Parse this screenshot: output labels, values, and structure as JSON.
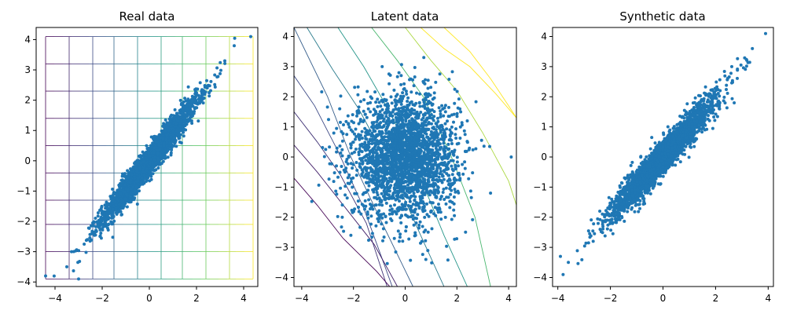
{
  "figure": {
    "point_color": "#1f77b4",
    "axis_color": "#000000",
    "background": "#ffffff",
    "line_colormap": "viridis"
  },
  "chart_data": [
    {
      "type": "scatter",
      "title": "Real data",
      "xlim": [
        -4.8,
        4.6
      ],
      "ylim": [
        -4.15,
        4.4
      ],
      "xticks": [
        -4,
        -2,
        0,
        2,
        4
      ],
      "yticks": [
        -4,
        -3,
        -2,
        -1,
        0,
        1,
        2,
        3,
        4
      ],
      "grid": "warped-grid",
      "series": [
        {
          "distribution": "bivariate-normal",
          "n_points": 2600,
          "mean": [
            0,
            0
          ],
          "std_x": 1.0,
          "std_y": 1.0,
          "correlation": 0.97,
          "outliers": [
            [
              4.3,
              4.1
            ],
            [
              3.6,
              3.8
            ],
            [
              3.2,
              3.3
            ],
            [
              -4.4,
              -3.8
            ],
            [
              -3.0,
              -3.9
            ],
            [
              -3.5,
              -3.5
            ],
            [
              -3.3,
              -3.0
            ]
          ]
        }
      ],
      "grid_lines": {
        "vertical_x": [
          -4.4,
          -3.4,
          -2.4,
          -1.5,
          -0.5,
          0.5,
          1.4,
          2.4,
          3.4
        ],
        "horizontal_y": [
          4.1,
          3.2,
          2.3,
          1.4,
          0.5,
          -0.4,
          -1.3,
          -2.1,
          -3.0,
          -3.9
        ],
        "x_range": [
          -4.4,
          4.4
        ],
        "y_range": [
          -3.9,
          4.1
        ]
      }
    },
    {
      "type": "scatter",
      "title": "Latent data",
      "xlim": [
        -4.3,
        4.3
      ],
      "ylim": [
        -4.3,
        4.3
      ],
      "xticks": [
        -4,
        -2,
        0,
        2,
        4
      ],
      "yticks": [
        -4,
        -3,
        -2,
        -1,
        0,
        1,
        2,
        3,
        4
      ],
      "grid": "warped-grid",
      "series": [
        {
          "distribution": "bivariate-normal",
          "n_points": 2600,
          "mean": [
            0,
            0
          ],
          "std_x": 1.0,
          "std_y": 1.0,
          "correlation": 0.0,
          "outliers": [
            [
              4.1,
              0.0
            ],
            [
              2.4,
              1.2
            ],
            [
              3.3,
              -1.2
            ],
            [
              -2.1,
              -2.6
            ],
            [
              0.8,
              -3.4
            ]
          ]
        }
      ],
      "grid_lines": {
        "curves": [
          [
            [
              -4.3,
              4.3
            ],
            [
              -3.0,
              2.0
            ],
            [
              -2.1,
              0.0
            ],
            [
              -1.0,
              -2.0
            ],
            [
              0.3,
              -4.3
            ]
          ],
          [
            [
              -4.3,
              2.7
            ],
            [
              -3.5,
              1.7
            ],
            [
              -2.6,
              0.2
            ],
            [
              -1.6,
              -1.7
            ],
            [
              -0.5,
              -4.3
            ]
          ],
          [
            [
              -4.3,
              1.5
            ],
            [
              -3.4,
              0.5
            ],
            [
              -2.5,
              -0.6
            ],
            [
              -1.5,
              -2.2
            ],
            [
              -0.7,
              -4.3
            ]
          ],
          [
            [
              -4.3,
              0.4
            ],
            [
              -3.4,
              -0.5
            ],
            [
              -2.3,
              -1.7
            ],
            [
              -1.2,
              -2.9
            ],
            [
              -0.3,
              -4.3
            ]
          ],
          [
            [
              -4.3,
              -0.7
            ],
            [
              -3.4,
              -1.6
            ],
            [
              -2.4,
              -2.7
            ],
            [
              -1.1,
              -3.8
            ],
            [
              -0.6,
              -4.3
            ]
          ],
          [
            [
              -2.6,
              4.3
            ],
            [
              -1.6,
              3.0
            ],
            [
              -0.6,
              1.5
            ],
            [
              0.5,
              -0.5
            ],
            [
              1.5,
              -2.6
            ],
            [
              2.4,
              -4.3
            ]
          ],
          [
            [
              -1.3,
              4.3
            ],
            [
              -0.3,
              3.2
            ],
            [
              0.7,
              2.0
            ],
            [
              1.7,
              0.2
            ],
            [
              2.7,
              -2.0
            ],
            [
              3.3,
              -4.3
            ]
          ],
          [
            [
              0.0,
              4.3
            ],
            [
              1.0,
              3.2
            ],
            [
              2.0,
              2.2
            ],
            [
              3.0,
              0.8
            ],
            [
              4.0,
              -0.8
            ],
            [
              4.3,
              -1.6
            ]
          ],
          [
            [
              1.5,
              4.3
            ],
            [
              2.5,
              3.5
            ],
            [
              3.3,
              2.6
            ],
            [
              4.0,
              1.7
            ],
            [
              4.3,
              1.3
            ]
          ],
          [
            [
              0.6,
              4.3
            ],
            [
              1.5,
              3.6
            ],
            [
              2.5,
              3.0
            ],
            [
              3.5,
              2.1
            ],
            [
              4.3,
              1.3
            ]
          ],
          [
            [
              -3.8,
              4.3
            ],
            [
              -2.8,
              2.9
            ],
            [
              -1.8,
              1.6
            ],
            [
              -0.6,
              -0.3
            ],
            [
              0.6,
              -2.6
            ],
            [
              1.5,
              -4.3
            ]
          ]
        ]
      }
    },
    {
      "type": "scatter",
      "title": "Synthetic data",
      "xlim": [
        -4.2,
        4.2
      ],
      "ylim": [
        -4.3,
        4.3
      ],
      "xticks": [
        -4,
        -2,
        0,
        2,
        4
      ],
      "yticks": [
        -4,
        -3,
        -2,
        -1,
        0,
        1,
        2,
        3,
        4
      ],
      "grid": false,
      "series": [
        {
          "distribution": "bivariate-normal",
          "n_points": 2600,
          "mean": [
            0,
            0
          ],
          "std_x": 1.0,
          "std_y": 1.0,
          "correlation": 0.96,
          "outliers": [
            [
              3.9,
              4.1
            ],
            [
              -3.8,
              -3.9
            ],
            [
              -3.6,
              -3.5
            ],
            [
              3.4,
              3.6
            ],
            [
              -3.9,
              -3.3
            ]
          ]
        }
      ]
    }
  ]
}
